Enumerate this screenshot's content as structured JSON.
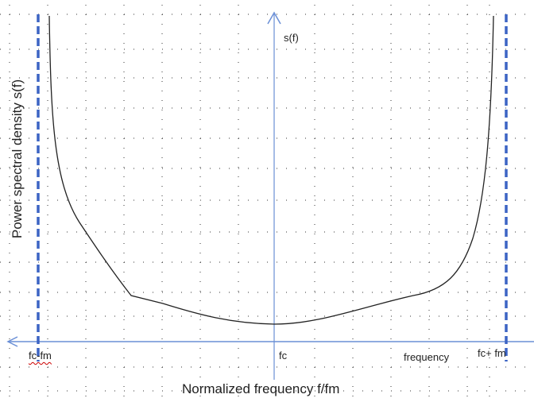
{
  "labels": {
    "y_axis_title": "Power spectral density s(f)",
    "x_axis_title": "Normalized frequency f/fm",
    "center_axis": "s(f)",
    "left_marker": "fc-fm",
    "center_marker": "fc",
    "right_marker": "fc+ fm",
    "x_axis_word": "frequency"
  },
  "colors": {
    "axis": "#6a8fd6",
    "marker_dashed": "#3c64c4",
    "curve": "#222222",
    "grid": "#333333"
  }
}
